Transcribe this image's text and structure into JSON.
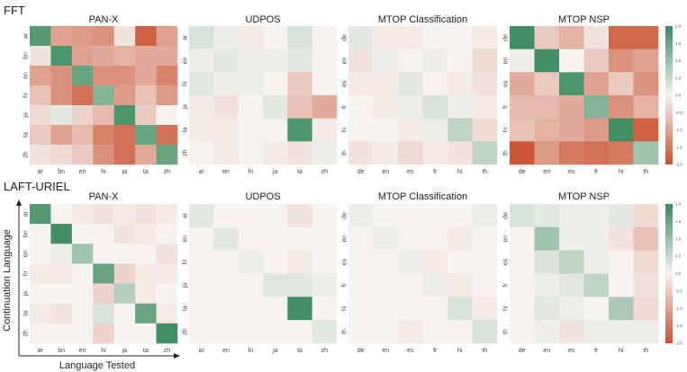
{
  "rows": [
    {
      "title": "FFT",
      "min": -2,
      "max": 2
    },
    {
      "title": "LAFT-URIEL",
      "min": -2,
      "max": 2
    }
  ],
  "xlabel": "Language Tested",
  "ylabel": "Continuation Language",
  "colorbar_ticks": [
    "2.0",
    "1.5",
    "1.0",
    "0.5",
    "0.0",
    "-0.5",
    "-1.0",
    "-1.5",
    "-2.0"
  ],
  "colors": {
    "positive": "#3a8a5e",
    "neutral": "#f6f3f1",
    "negative": "#c9512f"
  },
  "chart_data": [
    {
      "type": "heatmap",
      "row": 0,
      "title": "PAN-X",
      "labels": [
        "ar",
        "bn",
        "en",
        "hi",
        "ja",
        "ta",
        "zh"
      ],
      "values": [
        [
          1.7,
          -1.0,
          -1.1,
          -1.2,
          -0.2,
          -1.8,
          -1.0
        ],
        [
          -0.2,
          1.8,
          -1.0,
          -0.9,
          -0.8,
          -0.9,
          -0.9
        ],
        [
          -1.0,
          -1.2,
          1.5,
          -1.2,
          -1.2,
          -0.9,
          -1.4
        ],
        [
          -0.6,
          -1.2,
          -1.6,
          1.2,
          -1.1,
          -0.6,
          -1.1
        ],
        [
          -0.3,
          0.2,
          -0.4,
          -0.7,
          1.8,
          -0.5,
          0.0
        ],
        [
          -0.5,
          -1.0,
          -0.7,
          -1.4,
          -1.6,
          1.5,
          -1.6
        ],
        [
          -0.2,
          -0.3,
          -0.5,
          -1.2,
          -1.6,
          -0.9,
          1.5
        ]
      ]
    },
    {
      "type": "heatmap",
      "row": 0,
      "title": "UDPOS",
      "labels": [
        "ar",
        "en",
        "hi",
        "ja",
        "ta",
        "zh"
      ],
      "values": [
        [
          0.3,
          0.1,
          -0.1,
          0.0,
          0.3,
          0.0
        ],
        [
          0.1,
          0.2,
          0.1,
          0.1,
          0.2,
          0.0
        ],
        [
          0.2,
          0.1,
          0.1,
          0.0,
          -0.5,
          0.0
        ],
        [
          -0.1,
          -0.2,
          0.0,
          0.2,
          -0.6,
          -0.9
        ],
        [
          -0.1,
          -0.1,
          0.0,
          0.0,
          1.8,
          -0.1
        ],
        [
          0.0,
          -0.1,
          0.0,
          -0.1,
          -0.2,
          0.1
        ]
      ]
    },
    {
      "type": "heatmap",
      "row": 0,
      "title": "MTOP Classification",
      "labels": [
        "de",
        "en",
        "es",
        "fr",
        "hi",
        "th"
      ],
      "values": [
        [
          0.2,
          -0.1,
          -0.1,
          0.0,
          0.0,
          -0.1
        ],
        [
          -0.2,
          0.1,
          0.0,
          0.1,
          0.0,
          -0.3
        ],
        [
          -0.1,
          -0.1,
          0.2,
          0.0,
          -0.1,
          -0.2
        ],
        [
          0.0,
          -0.1,
          0.1,
          0.3,
          0.1,
          -0.1
        ],
        [
          0.0,
          0.0,
          -0.1,
          0.1,
          0.6,
          -0.3
        ],
        [
          -0.2,
          -0.1,
          -0.3,
          -0.1,
          -0.2,
          0.6
        ]
      ]
    },
    {
      "type": "heatmap",
      "row": 0,
      "title": "MTOP NSP",
      "labels": [
        "de",
        "en",
        "es",
        "fr",
        "hi",
        "th"
      ],
      "values": [
        [
          1.9,
          -0.5,
          -0.8,
          -0.2,
          -1.7,
          -1.7
        ],
        [
          0.1,
          1.9,
          0.0,
          -0.5,
          -1.2,
          -1.0
        ],
        [
          -0.9,
          -0.5,
          1.8,
          -1.0,
          -0.5,
          -1.2
        ],
        [
          -0.7,
          -0.7,
          -0.9,
          1.2,
          -1.2,
          -0.8
        ],
        [
          -0.6,
          -0.8,
          -0.9,
          -1.1,
          1.9,
          -1.8
        ],
        [
          -1.9,
          -1.1,
          -1.5,
          -1.6,
          -1.5,
          0.9
        ]
      ]
    },
    {
      "type": "heatmap",
      "row": 1,
      "title": "PAN-X",
      "labels": [
        "ar",
        "bn",
        "en",
        "hi",
        "ja",
        "ta",
        "zh"
      ],
      "values": [
        [
          1.7,
          0.0,
          -0.1,
          -0.2,
          -0.1,
          -0.2,
          -0.1
        ],
        [
          0.0,
          1.9,
          0.0,
          0.0,
          -0.2,
          -0.1,
          0.0
        ],
        [
          0.0,
          0.1,
          0.9,
          0.0,
          0.0,
          0.0,
          -0.2
        ],
        [
          -0.1,
          -0.1,
          0.0,
          1.5,
          -0.4,
          -0.1,
          -0.1
        ],
        [
          0.0,
          0.0,
          0.0,
          -0.4,
          0.7,
          -0.1,
          0.0
        ],
        [
          -0.1,
          -0.2,
          0.0,
          0.3,
          0.0,
          1.5,
          -0.1
        ],
        [
          0.0,
          0.0,
          0.0,
          -0.4,
          0.0,
          0.0,
          1.9
        ]
      ]
    },
    {
      "type": "heatmap",
      "row": 1,
      "title": "UDPOS",
      "labels": [
        "ar",
        "en",
        "hi",
        "ja",
        "ta",
        "zh"
      ],
      "values": [
        [
          0.2,
          0.0,
          0.0,
          0.0,
          -0.2,
          0.0
        ],
        [
          0.0,
          0.2,
          0.0,
          0.0,
          0.0,
          0.0
        ],
        [
          0.0,
          0.0,
          0.1,
          0.0,
          -0.1,
          0.0
        ],
        [
          0.0,
          0.0,
          0.0,
          0.2,
          0.2,
          0.1
        ],
        [
          0.0,
          0.0,
          0.0,
          0.0,
          1.9,
          0.0
        ],
        [
          0.0,
          0.0,
          0.0,
          0.0,
          0.0,
          0.2
        ]
      ]
    },
    {
      "type": "heatmap",
      "row": 1,
      "title": "MTOP Classification",
      "labels": [
        "de",
        "en",
        "es",
        "fr",
        "hi",
        "th"
      ],
      "values": [
        [
          0.1,
          0.0,
          0.0,
          0.0,
          0.0,
          0.1
        ],
        [
          0.0,
          0.1,
          0.0,
          0.0,
          -0.1,
          0.0
        ],
        [
          0.0,
          0.0,
          0.1,
          -0.1,
          0.0,
          0.0
        ],
        [
          0.0,
          0.0,
          0.0,
          0.1,
          -0.1,
          0.0
        ],
        [
          0.0,
          0.0,
          0.0,
          0.0,
          0.3,
          -0.1
        ],
        [
          0.0,
          0.0,
          -0.1,
          0.0,
          0.0,
          0.3
        ]
      ]
    },
    {
      "type": "heatmap",
      "row": 1,
      "title": "MTOP NSP",
      "labels": [
        "de",
        "en",
        "es",
        "fr",
        "hi",
        "th"
      ],
      "values": [
        [
          0.3,
          0.2,
          0.1,
          0.1,
          0.2,
          -0.3
        ],
        [
          0.0,
          0.9,
          0.1,
          0.1,
          -0.2,
          -0.6
        ],
        [
          0.0,
          0.3,
          0.6,
          0.1,
          0.0,
          -0.3
        ],
        [
          0.0,
          0.1,
          0.2,
          0.6,
          0.0,
          -0.2
        ],
        [
          0.0,
          0.2,
          0.1,
          0.0,
          0.8,
          -0.3
        ],
        [
          0.0,
          0.1,
          -0.2,
          0.1,
          0.1,
          0.1
        ]
      ]
    }
  ]
}
